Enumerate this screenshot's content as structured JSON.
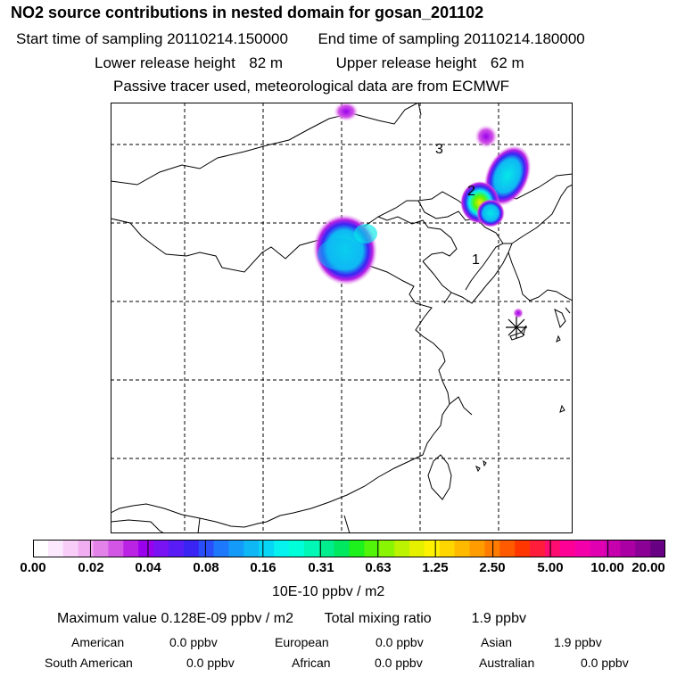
{
  "header": {
    "title": "NO2 source contributions in nested domain for gosan_201102",
    "start_label": "Start time of sampling",
    "start_value": "20110214.150000",
    "end_label": "End time of sampling",
    "end_value": "20110214.180000",
    "lower_label": "Lower release height",
    "lower_value": "82 m",
    "upper_label": "Upper release height",
    "upper_value": "62 m",
    "tracer_note": "Passive tracer used, meteorological data are from ECMWF"
  },
  "map": {
    "labels": [
      "1",
      "2",
      "3"
    ],
    "receptor_marker": "asterisk-icon"
  },
  "colorbar": {
    "ticks": [
      "0.00",
      "0.02",
      "0.04",
      "0.08",
      "0.16",
      "0.31",
      "0.63",
      "1.25",
      "2.50",
      "5.00",
      "10.00",
      "20.00"
    ],
    "colors": [
      "#ffffff",
      "#fde9fd",
      "#f8cdf8",
      "#f1aef1",
      "#e383e9",
      "#d255e6",
      "#bb23e4",
      "#9a00ee",
      "#7a13f4",
      "#5a1cf6",
      "#3a24f4",
      "#2a4ffa",
      "#1d78fc",
      "#149bfa",
      "#0fb8f4",
      "#07d6f4",
      "#05f2ee",
      "#00ffd9",
      "#00f7b6",
      "#00ee8d",
      "#00e760",
      "#1df21d",
      "#52f509",
      "#8af503",
      "#bbf300",
      "#e5ef00",
      "#fff200",
      "#ffd600",
      "#ffba00",
      "#ff9c00",
      "#ff7c00",
      "#ff5a00",
      "#ff3600",
      "#ff1d3c",
      "#ff0c70",
      "#ff0096",
      "#f400aa",
      "#e000b2",
      "#c700ad",
      "#aa00a3",
      "#8b0095",
      "#670082"
    ],
    "units": "10E-10 ppbv / m2"
  },
  "summary": {
    "max_text": "Maximum value  0.128E-09 ppbv / m2",
    "total_label": "Total mixing ratio",
    "total_value": "1.9 ppbv",
    "regions": [
      {
        "name": "American",
        "value": "0.0 ppbv"
      },
      {
        "name": "European",
        "value": "0.0 ppbv"
      },
      {
        "name": "Asian",
        "value": "1.9 ppbv"
      },
      {
        "name": "South American",
        "value": "0.0 ppbv"
      },
      {
        "name": "African",
        "value": "0.0 ppbv"
      },
      {
        "name": "Australian",
        "value": "0.0 ppbv"
      }
    ]
  }
}
